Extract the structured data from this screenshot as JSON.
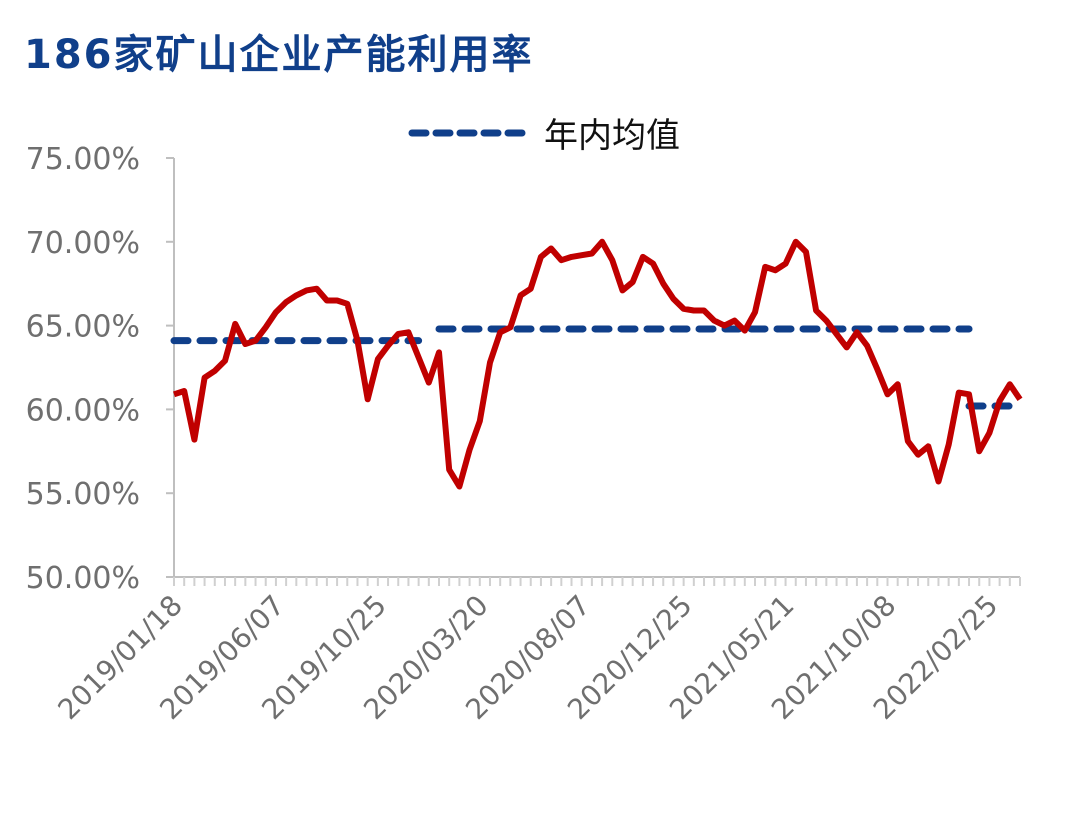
{
  "title": "186家矿山企业产能利用率",
  "legend": {
    "label": "年内均值",
    "color": "#103f8a"
  },
  "colors": {
    "series": "#c00000",
    "mean": "#103f8a",
    "axis": "#bfbfbf",
    "text": "#6f6f6f"
  },
  "chart_data": {
    "type": "line",
    "title": "186家矿山企业产能利用率",
    "xlabel": "",
    "ylabel": "",
    "ylim": [
      50,
      75
    ],
    "y_ticks": [
      "75.00%",
      "70.00%",
      "65.00%",
      "60.00%",
      "55.00%",
      "50.00%"
    ],
    "x_tick_labels": [
      "2019/01/18",
      "2019/06/07",
      "2019/10/25",
      "2020/03/20",
      "2020/08/07",
      "2020/12/25",
      "2021/05/21",
      "2021/10/08",
      "2022/02/25"
    ],
    "x_interval": "2 weeks per point, label every 10 points",
    "grid": false,
    "legend_position": "top",
    "series": [
      {
        "name": "产能利用率",
        "color": "#c00000",
        "values": [
          60.9,
          61.1,
          58.2,
          61.9,
          62.3,
          62.9,
          65.1,
          63.9,
          64.1,
          64.9,
          65.8,
          66.4,
          66.8,
          67.1,
          67.2,
          66.5,
          66.5,
          66.3,
          64.1,
          60.6,
          63.0,
          63.8,
          64.5,
          64.6,
          63.1,
          61.6,
          63.4,
          56.4,
          55.4,
          57.6,
          59.3,
          62.8,
          64.6,
          64.9,
          66.8,
          67.2,
          69.1,
          69.6,
          68.9,
          69.1,
          69.2,
          69.3,
          70.0,
          68.9,
          67.1,
          67.6,
          69.1,
          68.7,
          67.5,
          66.6,
          66.0,
          65.9,
          65.9,
          65.3,
          65.0,
          65.3,
          64.7,
          65.8,
          68.5,
          68.3,
          68.7,
          70.0,
          69.4,
          65.9,
          65.3,
          64.5,
          63.7,
          64.6,
          63.8,
          62.4,
          60.9,
          61.5,
          58.1,
          57.3,
          57.8,
          55.7,
          57.9,
          61.0,
          60.9,
          57.5,
          58.6,
          60.5,
          61.5,
          60.6
        ]
      },
      {
        "name": "年内均值",
        "color": "#103f8a",
        "segments": [
          {
            "year": "2019",
            "value": 64.1
          },
          {
            "year": "2020-2021",
            "value": 64.8
          },
          {
            "year": "2022",
            "value": 60.2
          }
        ]
      }
    ]
  }
}
